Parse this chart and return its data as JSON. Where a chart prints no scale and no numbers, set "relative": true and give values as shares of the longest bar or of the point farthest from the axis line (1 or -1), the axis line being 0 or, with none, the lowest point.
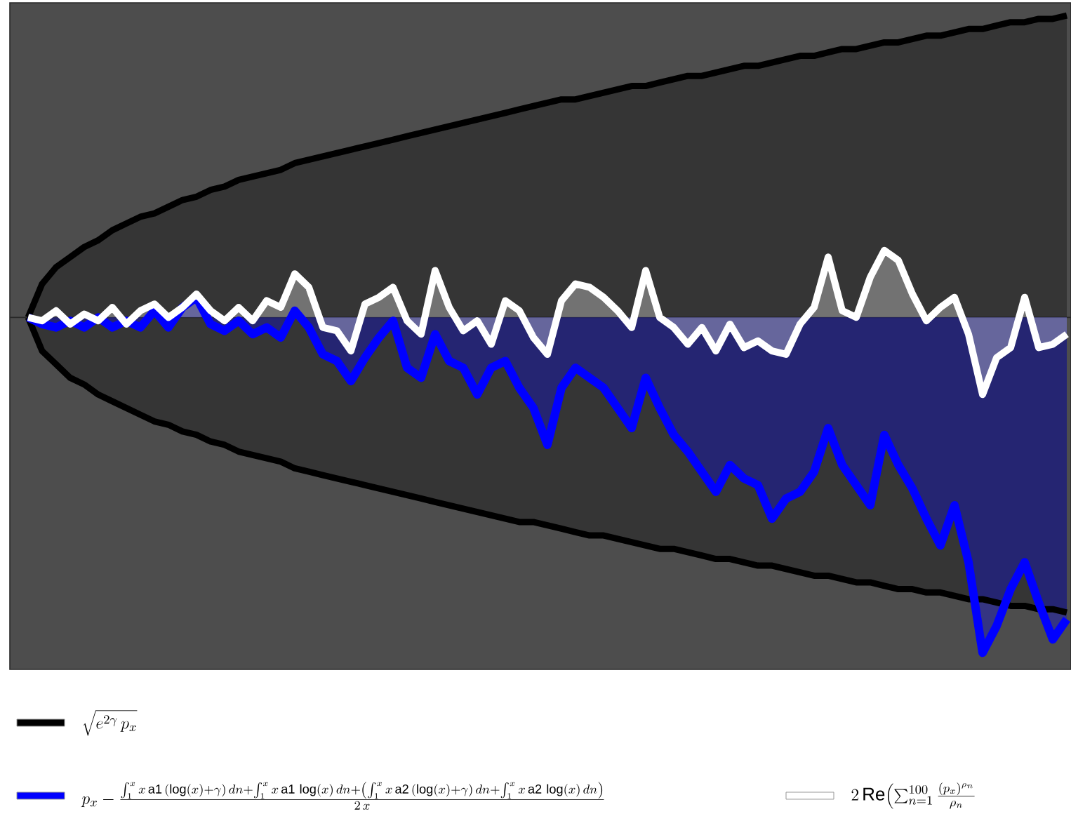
{
  "chart_data": {
    "type": "area",
    "relative": true,
    "legend": "bottom",
    "categories": [
      null,
      null,
      null,
      null,
      null,
      null,
      null,
      null,
      null,
      null,
      null,
      null,
      null,
      null,
      null,
      null,
      null,
      null,
      null,
      null,
      null,
      null,
      null,
      null,
      null,
      null,
      null,
      null,
      null,
      null,
      null,
      null,
      null,
      null,
      null,
      null,
      null,
      null,
      null,
      null,
      null,
      null,
      null,
      null,
      null,
      null,
      null,
      null,
      null,
      null,
      null,
      null,
      null,
      null,
      null,
      null,
      null,
      null,
      null,
      null,
      null,
      null,
      null,
      null,
      null,
      null,
      null,
      null,
      null,
      null,
      null,
      null,
      null,
      null,
      null
    ],
    "series": [
      {
        "name": "\\sqrt{e^{2\\gamma}\\, p_x}",
        "color": "#000000",
        "values": [
          0,
          0.1,
          0.15,
          0.18,
          0.21,
          0.23,
          0.26,
          0.28,
          0.3,
          0.31,
          0.33,
          0.35,
          0.36,
          0.38,
          0.39,
          0.41,
          0.42,
          0.43,
          0.44,
          0.46,
          0.47,
          0.48,
          0.49,
          0.5,
          0.51,
          0.52,
          0.53,
          0.54,
          0.55,
          0.56,
          0.57,
          0.58,
          0.59,
          0.6,
          0.61,
          0.62,
          0.63,
          0.64,
          0.65,
          0.65,
          0.66,
          0.67,
          0.68,
          0.69,
          0.69,
          0.7,
          0.71,
          0.72,
          0.72,
          0.73,
          0.74,
          0.75,
          0.75,
          0.76,
          0.77,
          0.78,
          0.78,
          0.79,
          0.8,
          0.8,
          0.81,
          0.82,
          0.82,
          0.83,
          0.84,
          0.84,
          0.85,
          0.86,
          0.86,
          0.87,
          0.88,
          0.88,
          0.89,
          0.89,
          0.9
        ]
      },
      {
        "color": "#000000",
        "values": [
          0,
          -0.1,
          -0.14,
          -0.18,
          -0.2,
          -0.23,
          -0.25,
          -0.27,
          -0.29,
          -0.31,
          -0.32,
          -0.34,
          -0.35,
          -0.37,
          -0.38,
          -0.4,
          -0.41,
          -0.42,
          -0.43,
          -0.45,
          -0.46,
          -0.47,
          -0.48,
          -0.49,
          -0.5,
          -0.51,
          -0.52,
          -0.53,
          -0.54,
          -0.55,
          -0.56,
          -0.57,
          -0.58,
          -0.59,
          -0.6,
          -0.61,
          -0.61,
          -0.62,
          -0.63,
          -0.64,
          -0.65,
          -0.65,
          -0.66,
          -0.67,
          -0.68,
          -0.69,
          -0.69,
          -0.7,
          -0.71,
          -0.72,
          -0.72,
          -0.73,
          -0.74,
          -0.74,
          -0.75,
          -0.76,
          -0.77,
          -0.77,
          -0.78,
          -0.79,
          -0.79,
          -0.8,
          -0.81,
          -0.81,
          -0.82,
          -0.82,
          -0.83,
          -0.84,
          -0.84,
          -0.85,
          -0.86,
          -0.86,
          -0.87,
          -0.87,
          -0.88
        ]
      },
      {
        "name": "p_x-\\frac{\\int_1^x x\\,\\mathrm{a1}\\,(\\log(x)+\\gamma)\\,dn+\\int_1^x x\\,\\mathrm{a1}\\,\\log(x)\\,dn+\\left(\\int_1^x x\\,\\mathrm{a2}\\,(\\log(x)+\\gamma)\\,dn+\\int_1^x x\\,\\mathrm{a2}\\,\\log(x)\\,dn\\right)}{2\\,x}",
        "color": "#0000ff",
        "values": [
          0,
          -0.02,
          -0.03,
          -0.01,
          -0.03,
          0,
          -0.03,
          -0.01,
          -0.03,
          0.02,
          -0.03,
          0.03,
          0.06,
          -0.02,
          -0.04,
          -0.01,
          -0.05,
          -0.03,
          -0.06,
          0.02,
          -0.03,
          -0.11,
          -0.13,
          -0.19,
          -0.12,
          -0.06,
          -0.01,
          -0.15,
          -0.18,
          -0.05,
          -0.13,
          -0.15,
          -0.23,
          -0.15,
          -0.13,
          -0.21,
          -0.27,
          -0.38,
          -0.21,
          -0.15,
          -0.18,
          -0.21,
          -0.27,
          -0.33,
          -0.18,
          -0.27,
          -0.35,
          -0.4,
          -0.46,
          -0.52,
          -0.44,
          -0.48,
          -0.5,
          -0.6,
          -0.54,
          -0.52,
          -0.46,
          -0.33,
          -0.44,
          -0.5,
          -0.56,
          -0.35,
          -0.44,
          -0.51,
          -0.6,
          -0.68,
          -0.56,
          -0.73,
          -1,
          -0.92,
          -0.81,
          -0.73,
          -0.85,
          -0.96,
          -0.9
        ]
      },
      {
        "name": "2\\,\\mathrm{Re}\\Bigl(\\sum_{n=1}^{100}\\frac{(p_x)^{\\rho_n}}{\\rho_n}",
        "color": "#ffffff",
        "values": [
          0,
          -0.01,
          0.02,
          -0.02,
          0.01,
          -0.01,
          0.03,
          -0.02,
          0.02,
          0.04,
          0,
          0.03,
          0.07,
          0.02,
          -0.01,
          0.03,
          -0.01,
          0.05,
          0.03,
          0.13,
          0.09,
          -0.03,
          -0.04,
          -0.1,
          0.04,
          0.06,
          0.09,
          -0.01,
          -0.05,
          0.14,
          0.03,
          -0.04,
          -0.01,
          -0.08,
          0.05,
          0.02,
          -0.06,
          -0.11,
          0.05,
          0.1,
          0.09,
          0.06,
          0.02,
          -0.03,
          0.14,
          0,
          -0.03,
          -0.08,
          -0.03,
          -0.1,
          -0.02,
          -0.09,
          -0.07,
          -0.1,
          -0.11,
          -0.02,
          0.03,
          0.18,
          0.02,
          0,
          0.12,
          0.2,
          0.17,
          0.07,
          -0.01,
          0.03,
          0.06,
          -0.05,
          -0.23,
          -0.12,
          -0.09,
          0.06,
          -0.09,
          -0.08,
          -0.05
        ]
      }
    ]
  }
}
